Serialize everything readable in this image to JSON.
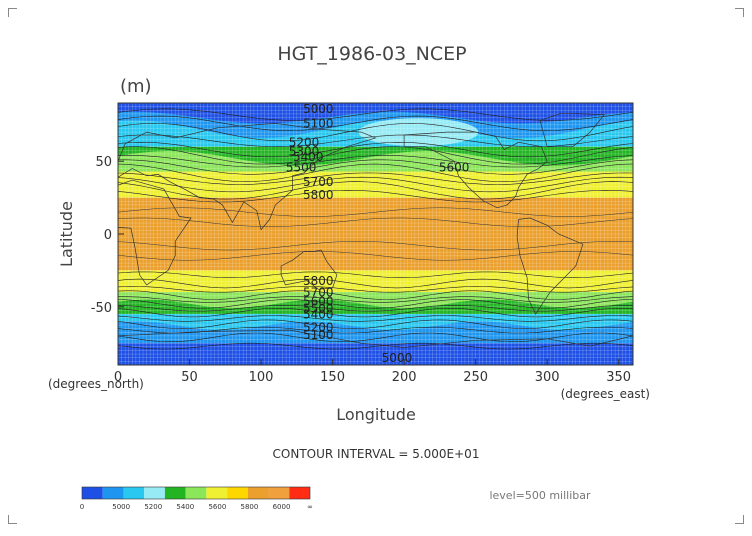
{
  "chart_data": {
    "type": "heatmap",
    "title": "HGT_1986-03_NCEP",
    "units": "(m)",
    "xlabel": "Longitude",
    "ylabel": "Latitude",
    "x_units": "(degrees_east)",
    "y_units": "(degrees_north)",
    "xlim": [
      0,
      360
    ],
    "ylim": [
      -90,
      90
    ],
    "x_ticks": [
      0,
      50,
      100,
      150,
      200,
      250,
      300,
      350
    ],
    "y_ticks": [
      -50,
      0,
      50
    ],
    "contour_interval_text": "CONTOUR INTERVAL = 5.000E+01",
    "level_text": "level=500 millibar",
    "colorbar": {
      "colors": [
        "#1e50e6",
        "#1e96f0",
        "#28c8f0",
        "#96ebf5",
        "#23b423",
        "#8ce65a",
        "#f0f032",
        "#ffd700",
        "#eba02d",
        "#f0a03c",
        "#ff2d14"
      ],
      "labels": [
        "0",
        "5000",
        "5200",
        "5400",
        "5600",
        "5800",
        "6000",
        "∞"
      ]
    },
    "bands": [
      {
        "value": "5000",
        "lat_range": [
          80,
          90
        ],
        "color": "#1e50e6"
      },
      {
        "value": "5100-5300",
        "lat_range": [
          60,
          80
        ],
        "color": "#28c8f0"
      },
      {
        "value": "5300-5500",
        "lat_range": [
          43,
          60
        ],
        "color": "#23b423"
      },
      {
        "value": "5500-5800",
        "lat_range": [
          25,
          43
        ],
        "color": "#f0f032"
      },
      {
        "value": ">5800",
        "lat_range": [
          -25,
          25
        ],
        "color": "#eba02d"
      },
      {
        "value": "5500-5800",
        "lat_range": [
          -40,
          -25
        ],
        "color": "#f0f032"
      },
      {
        "value": "5300-5500",
        "lat_range": [
          -55,
          -40
        ],
        "color": "#23b423"
      },
      {
        "value": "5100-5300",
        "lat_range": [
          -75,
          -55
        ],
        "color": "#28c8f0"
      },
      {
        "value": "<5100",
        "lat_range": [
          -90,
          -75
        ],
        "color": "#1e50e6"
      }
    ],
    "contour_labels": [
      {
        "text": "5000",
        "lon": 140,
        "lat": 83
      },
      {
        "text": "5100",
        "lon": 140,
        "lat": 73
      },
      {
        "text": "5200",
        "lon": 130,
        "lat": 60
      },
      {
        "text": "5300",
        "lon": 130,
        "lat": 54
      },
      {
        "text": "5400",
        "lon": 133,
        "lat": 50
      },
      {
        "text": "5500",
        "lon": 128,
        "lat": 43
      },
      {
        "text": "5600",
        "lon": 235,
        "lat": 43
      },
      {
        "text": "5700",
        "lon": 140,
        "lat": 33
      },
      {
        "text": "5800",
        "lon": 140,
        "lat": 24
      },
      {
        "text": "5800",
        "lon": 140,
        "lat": -35
      },
      {
        "text": "5700",
        "lon": 140,
        "lat": -43
      },
      {
        "text": "5600",
        "lon": 140,
        "lat": -49
      },
      {
        "text": "5500",
        "lon": 140,
        "lat": -54
      },
      {
        "text": "5400",
        "lon": 140,
        "lat": -58
      },
      {
        "text": "5200",
        "lon": 140,
        "lat": -67
      },
      {
        "text": "5100",
        "lon": 140,
        "lat": -72
      },
      {
        "text": "5000",
        "lon": 195,
        "lat": -88
      }
    ],
    "grid": true,
    "legend_position": "bottom-left"
  }
}
